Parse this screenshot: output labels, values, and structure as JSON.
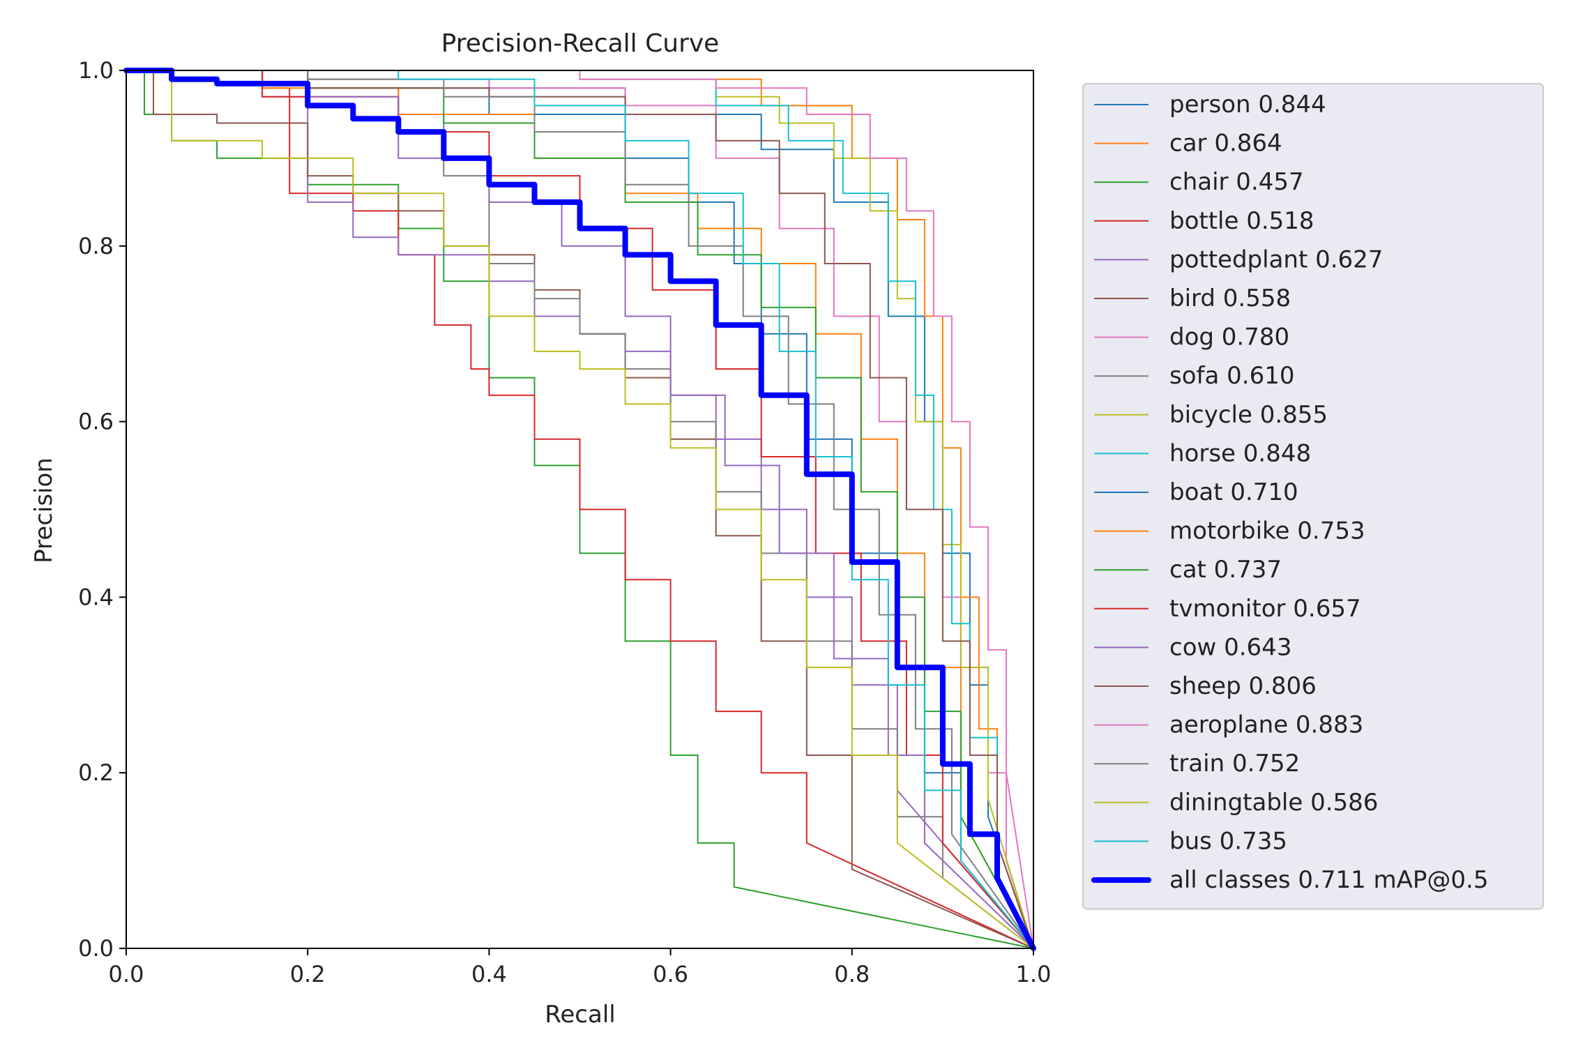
{
  "chart_data": {
    "type": "line",
    "title": "Precision-Recall Curve",
    "xlabel": "Recall",
    "ylabel": "Precision",
    "xlim": [
      0,
      1
    ],
    "ylim": [
      0,
      1
    ],
    "xticks": [
      "0.0",
      "0.2",
      "0.4",
      "0.6",
      "0.8",
      "1.0"
    ],
    "yticks": [
      "0.0",
      "0.2",
      "0.4",
      "0.6",
      "0.8",
      "1.0"
    ],
    "grid": false,
    "legend_position": "outside-right",
    "series": [
      {
        "label": "person 0.844",
        "color": "#1f77b4",
        "x": [
          0,
          0.2,
          0.4,
          0.55,
          0.7,
          0.78,
          0.84,
          0.88,
          0.9,
          0.93,
          0.95,
          1.0
        ],
        "y": [
          1,
          0.99,
          0.98,
          0.95,
          0.91,
          0.85,
          0.72,
          0.6,
          0.45,
          0.3,
          0.15,
          0
        ]
      },
      {
        "label": "car 0.864",
        "color": "#ff7f0e",
        "x": [
          0,
          0.3,
          0.5,
          0.7,
          0.8,
          0.85,
          0.88,
          0.9,
          0.92,
          0.94,
          0.96,
          1.0
        ],
        "y": [
          1,
          1,
          0.99,
          0.96,
          0.9,
          0.83,
          0.72,
          0.57,
          0.4,
          0.25,
          0.12,
          0
        ]
      },
      {
        "label": "chair 0.457",
        "color": "#2ca02c",
        "x": [
          0,
          0.02,
          0.05,
          0.1,
          0.2,
          0.3,
          0.35,
          0.4,
          0.45,
          0.5,
          0.55,
          0.6,
          0.63,
          0.67,
          1.0
        ],
        "y": [
          1,
          0.95,
          0.92,
          0.9,
          0.87,
          0.82,
          0.76,
          0.65,
          0.55,
          0.45,
          0.35,
          0.22,
          0.12,
          0.07,
          0
        ]
      },
      {
        "label": "bottle 0.518",
        "color": "#d62728",
        "x": [
          0,
          0.15,
          0.18,
          0.25,
          0.3,
          0.34,
          0.38,
          0.4,
          0.45,
          0.5,
          0.55,
          0.6,
          0.65,
          0.7,
          0.75,
          1.0
        ],
        "y": [
          1,
          0.98,
          0.86,
          0.84,
          0.79,
          0.71,
          0.66,
          0.63,
          0.58,
          0.5,
          0.42,
          0.35,
          0.27,
          0.2,
          0.12,
          0
        ]
      },
      {
        "label": "pottedplant 0.627",
        "color": "#9467bd",
        "x": [
          0,
          0.15,
          0.2,
          0.25,
          0.3,
          0.4,
          0.45,
          0.5,
          0.55,
          0.6,
          0.65,
          0.7,
          0.75,
          0.8,
          0.85,
          1.0
        ],
        "y": [
          1,
          0.97,
          0.85,
          0.81,
          0.79,
          0.76,
          0.72,
          0.7,
          0.68,
          0.63,
          0.58,
          0.5,
          0.4,
          0.3,
          0.18,
          0
        ]
      },
      {
        "label": "bird 0.558",
        "color": "#8c564b",
        "x": [
          0,
          0.03,
          0.1,
          0.2,
          0.25,
          0.3,
          0.35,
          0.4,
          0.45,
          0.5,
          0.55,
          0.6,
          0.65,
          0.7,
          0.75,
          0.8,
          1.0
        ],
        "y": [
          1,
          0.95,
          0.94,
          0.88,
          0.86,
          0.84,
          0.8,
          0.79,
          0.75,
          0.7,
          0.65,
          0.58,
          0.47,
          0.35,
          0.22,
          0.09,
          0
        ]
      },
      {
        "label": "dog 0.780",
        "color": "#e377c2",
        "x": [
          0,
          0.2,
          0.4,
          0.55,
          0.65,
          0.72,
          0.78,
          0.83,
          0.86,
          0.9,
          0.92,
          0.95,
          0.97,
          1.0
        ],
        "y": [
          1,
          0.99,
          0.98,
          0.96,
          0.9,
          0.82,
          0.72,
          0.6,
          0.5,
          0.4,
          0.32,
          0.2,
          0.1,
          0
        ]
      },
      {
        "label": "sofa 0.610",
        "color": "#7f7f7f",
        "x": [
          0,
          0.2,
          0.3,
          0.35,
          0.4,
          0.45,
          0.5,
          0.55,
          0.6,
          0.65,
          0.7,
          0.75,
          0.8,
          0.85,
          0.9,
          1.0
        ],
        "y": [
          1,
          0.98,
          0.95,
          0.88,
          0.78,
          0.74,
          0.7,
          0.66,
          0.6,
          0.52,
          0.45,
          0.35,
          0.25,
          0.15,
          0.08,
          0
        ]
      },
      {
        "label": "bicycle 0.855",
        "color": "#bcbd22",
        "x": [
          0,
          0.3,
          0.5,
          0.65,
          0.72,
          0.78,
          0.82,
          0.85,
          0.87,
          0.9,
          0.92,
          0.95,
          1.0
        ],
        "y": [
          1,
          1,
          0.99,
          0.97,
          0.94,
          0.9,
          0.84,
          0.74,
          0.6,
          0.46,
          0.32,
          0.17,
          0
        ]
      },
      {
        "label": "horse 0.848",
        "color": "#17becf",
        "x": [
          0,
          0.3,
          0.5,
          0.65,
          0.73,
          0.79,
          0.84,
          0.87,
          0.89,
          0.91,
          0.93,
          0.96,
          1.0
        ],
        "y": [
          1,
          1,
          0.99,
          0.96,
          0.92,
          0.86,
          0.76,
          0.63,
          0.5,
          0.37,
          0.24,
          0.12,
          0
        ]
      },
      {
        "label": "boat 0.710",
        "color": "#1f77b4",
        "x": [
          0,
          0.2,
          0.4,
          0.55,
          0.62,
          0.67,
          0.7,
          0.75,
          0.8,
          0.85,
          0.88,
          0.92,
          1.0
        ],
        "y": [
          1,
          0.98,
          0.95,
          0.9,
          0.85,
          0.78,
          0.7,
          0.58,
          0.45,
          0.32,
          0.2,
          0.1,
          0
        ]
      },
      {
        "label": "motorbike 0.753",
        "color": "#ff7f0e",
        "x": [
          0,
          0.15,
          0.3,
          0.45,
          0.55,
          0.63,
          0.7,
          0.76,
          0.81,
          0.85,
          0.88,
          0.92,
          1.0
        ],
        "y": [
          1,
          0.98,
          0.95,
          0.9,
          0.86,
          0.82,
          0.78,
          0.7,
          0.58,
          0.45,
          0.32,
          0.15,
          0
        ]
      },
      {
        "label": "cat 0.737",
        "color": "#2ca02c",
        "x": [
          0,
          0.2,
          0.35,
          0.45,
          0.55,
          0.63,
          0.7,
          0.76,
          0.81,
          0.85,
          0.88,
          0.92,
          1.0
        ],
        "y": [
          1,
          0.98,
          0.94,
          0.9,
          0.85,
          0.79,
          0.73,
          0.65,
          0.52,
          0.4,
          0.27,
          0.15,
          0
        ]
      },
      {
        "label": "tvmonitor 0.657",
        "color": "#d62728",
        "x": [
          0,
          0.15,
          0.3,
          0.4,
          0.5,
          0.58,
          0.65,
          0.7,
          0.76,
          0.81,
          0.86,
          0.9,
          1.0
        ],
        "y": [
          1,
          0.97,
          0.93,
          0.88,
          0.82,
          0.75,
          0.66,
          0.56,
          0.45,
          0.35,
          0.22,
          0.12,
          0
        ]
      },
      {
        "label": "cow 0.643",
        "color": "#9467bd",
        "x": [
          0,
          0.2,
          0.3,
          0.4,
          0.48,
          0.55,
          0.6,
          0.66,
          0.72,
          0.78,
          0.84,
          0.88,
          1.0
        ],
        "y": [
          1,
          0.97,
          0.9,
          0.85,
          0.8,
          0.72,
          0.63,
          0.55,
          0.45,
          0.33,
          0.22,
          0.12,
          0
        ]
      },
      {
        "label": "sheep 0.806",
        "color": "#8c564b",
        "x": [
          0,
          0.2,
          0.4,
          0.55,
          0.65,
          0.72,
          0.77,
          0.82,
          0.86,
          0.9,
          0.93,
          0.96,
          1.0
        ],
        "y": [
          1,
          0.98,
          0.97,
          0.95,
          0.92,
          0.86,
          0.78,
          0.65,
          0.5,
          0.35,
          0.22,
          0.12,
          0
        ]
      },
      {
        "label": "aeroplane 0.883",
        "color": "#e377c2",
        "x": [
          0,
          0.3,
          0.5,
          0.65,
          0.75,
          0.82,
          0.86,
          0.89,
          0.91,
          0.93,
          0.95,
          0.97,
          1.0
        ],
        "y": [
          1,
          1,
          0.99,
          0.98,
          0.95,
          0.9,
          0.84,
          0.72,
          0.6,
          0.48,
          0.34,
          0.2,
          0
        ]
      },
      {
        "label": "train 0.752",
        "color": "#7f7f7f",
        "x": [
          0,
          0.2,
          0.35,
          0.45,
          0.55,
          0.62,
          0.68,
          0.73,
          0.78,
          0.83,
          0.87,
          0.91,
          1.0
        ],
        "y": [
          1,
          0.99,
          0.97,
          0.93,
          0.87,
          0.8,
          0.72,
          0.62,
          0.5,
          0.38,
          0.25,
          0.13,
          0
        ]
      },
      {
        "label": "diningtable 0.586",
        "color": "#bcbd22",
        "x": [
          0,
          0.05,
          0.15,
          0.25,
          0.35,
          0.4,
          0.45,
          0.5,
          0.55,
          0.6,
          0.65,
          0.7,
          0.75,
          0.8,
          0.85,
          1.0
        ],
        "y": [
          1,
          0.92,
          0.9,
          0.86,
          0.8,
          0.72,
          0.68,
          0.66,
          0.62,
          0.57,
          0.5,
          0.42,
          0.32,
          0.22,
          0.12,
          0
        ]
      },
      {
        "label": "bus 0.735",
        "color": "#17becf",
        "x": [
          0,
          0.3,
          0.45,
          0.55,
          0.62,
          0.68,
          0.72,
          0.76,
          0.8,
          0.84,
          0.88,
          0.92,
          1.0
        ],
        "y": [
          1,
          0.99,
          0.96,
          0.92,
          0.86,
          0.78,
          0.68,
          0.56,
          0.42,
          0.3,
          0.18,
          0.1,
          0
        ]
      }
    ],
    "aggregate": {
      "label": "all classes 0.711 mAP@0.5",
      "color": "#0000ff",
      "x": [
        0,
        0.05,
        0.1,
        0.17,
        0.2,
        0.25,
        0.3,
        0.35,
        0.4,
        0.45,
        0.5,
        0.55,
        0.6,
        0.65,
        0.7,
        0.75,
        0.8,
        0.85,
        0.9,
        0.93,
        0.96,
        1.0
      ],
      "y": [
        1,
        0.99,
        0.985,
        0.985,
        0.96,
        0.945,
        0.93,
        0.9,
        0.87,
        0.85,
        0.82,
        0.79,
        0.76,
        0.71,
        0.63,
        0.54,
        0.44,
        0.32,
        0.21,
        0.13,
        0.08,
        0
      ]
    }
  }
}
